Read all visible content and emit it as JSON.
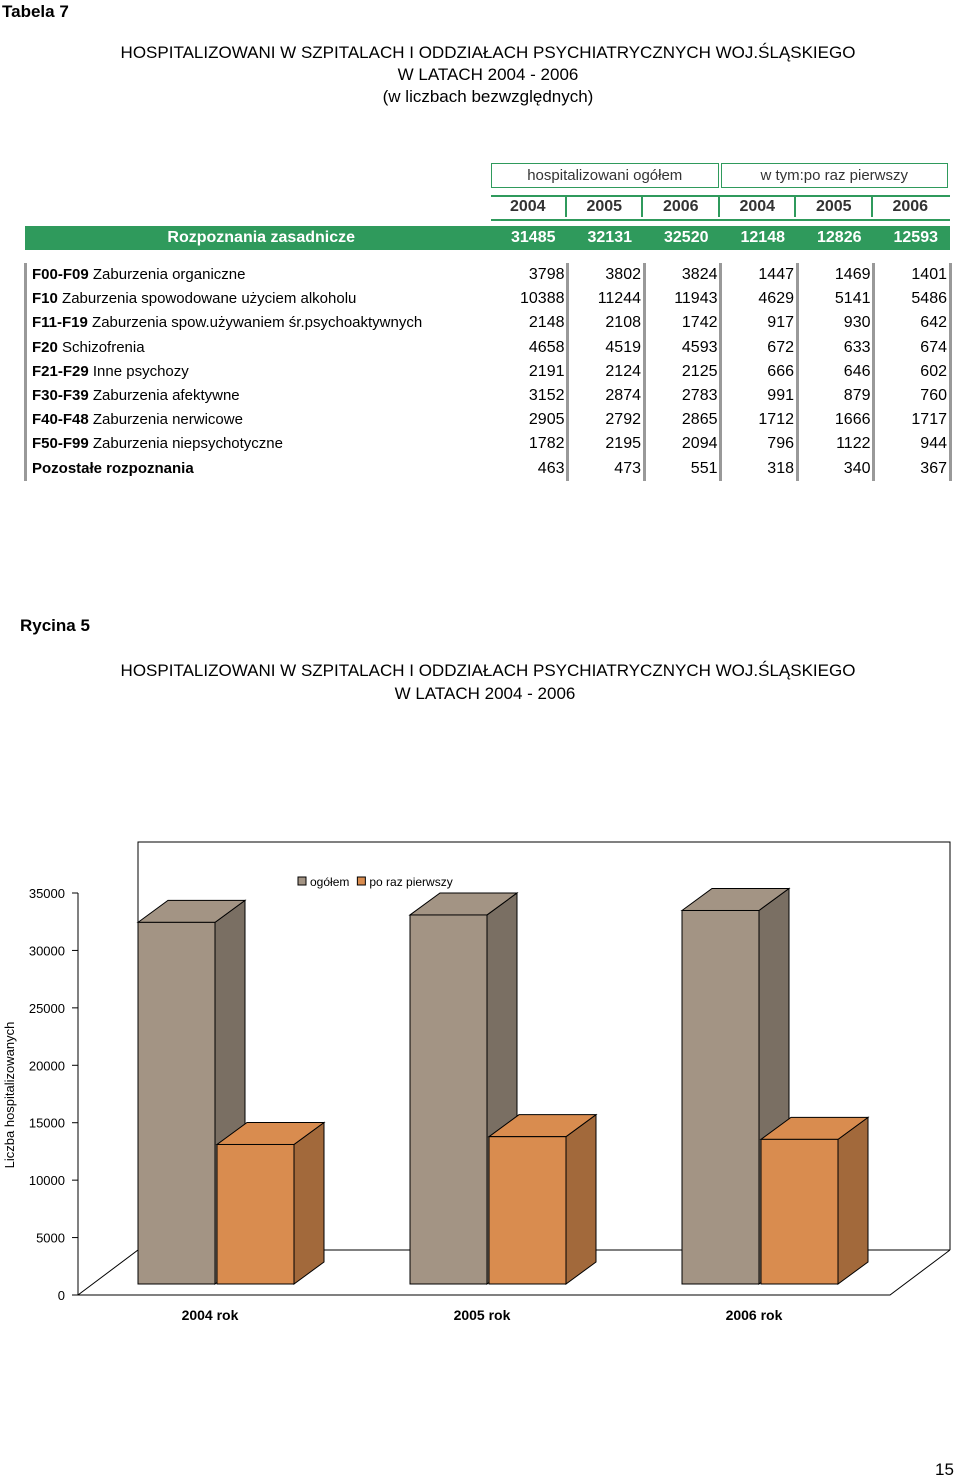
{
  "header": {
    "label": "Tabela 7",
    "title": [
      "HOSPITALIZOWANI W SZPITALACH I ODDZIAŁACH PSYCHIATRYCZNYCH WOJ.ŚLĄSKIEGO",
      "W LATACH 2004 - 2006",
      "(w liczbach bezwzględnych)"
    ]
  },
  "table": {
    "groups": [
      "hospitalizowani ogółem",
      "w tym:po raz pierwszy"
    ],
    "years": [
      2004,
      2005,
      2006,
      2004,
      2005,
      2006
    ],
    "total": {
      "label": "Rozpoznania zasadnicze",
      "values": [
        31485,
        32131,
        32520,
        12148,
        12826,
        12593
      ]
    },
    "rows": [
      {
        "code": "F00-F09",
        "name": "Zaburzenia organiczne",
        "values": [
          3798,
          3802,
          3824,
          1447,
          1469,
          1401
        ]
      },
      {
        "code": "F10",
        "name": "Zaburzenia spowodowane użyciem alkoholu",
        "values": [
          10388,
          11244,
          11943,
          4629,
          5141,
          5486
        ]
      },
      {
        "code": "F11-F19",
        "name": "Zaburzenia spow.używaniem śr.psychoaktywnych",
        "values": [
          2148,
          2108,
          1742,
          917,
          930,
          642
        ]
      },
      {
        "code": "F20",
        "name": "Schizofrenia",
        "values": [
          4658,
          4519,
          4593,
          672,
          633,
          674
        ]
      },
      {
        "code": "F21-F29",
        "name": "Inne psychozy",
        "values": [
          2191,
          2124,
          2125,
          666,
          646,
          602
        ]
      },
      {
        "code": "F30-F39",
        "name": "Zaburzenia afektywne",
        "values": [
          3152,
          2874,
          2783,
          991,
          879,
          760
        ]
      },
      {
        "code": "F40-F48",
        "name": "Zaburzenia nerwicowe",
        "values": [
          2905,
          2792,
          2865,
          1712,
          1666,
          1717
        ]
      },
      {
        "code": "F50-F99",
        "name": "Zaburzenia niepsychotyczne",
        "values": [
          1782,
          2195,
          2094,
          796,
          1122,
          944
        ]
      },
      {
        "code": "Pozostałe rozpoznania",
        "values": [
          463,
          473,
          551,
          318,
          340,
          367
        ]
      }
    ]
  },
  "chart_data": {
    "type": "bar",
    "label": "Rycina 5",
    "title": [
      "HOSPITALIZOWANI W SZPITALACH I ODDZIAŁACH  PSYCHIATRYCZNYCH WOJ.ŚLĄSKIEGO",
      "W LATACH 2004 - 2006"
    ],
    "y_label": "Liczba hospitalizowanych",
    "categories": [
      "2004 rok",
      "2005 rok",
      "2006 rok"
    ],
    "series": [
      {
        "name": "ogółem",
        "color": "#a39484",
        "values": [
          31485,
          32131,
          32520
        ]
      },
      {
        "name": "po raz pierwszy",
        "color": "#d98c4f",
        "values": [
          12148,
          12826,
          12593
        ]
      }
    ],
    "ylim": [
      0,
      35000
    ],
    "yticks": [
      0,
      5000,
      10000,
      15000,
      20000,
      25000,
      30000,
      35000
    ],
    "grid": false,
    "legend": "top"
  },
  "page_number": 15
}
